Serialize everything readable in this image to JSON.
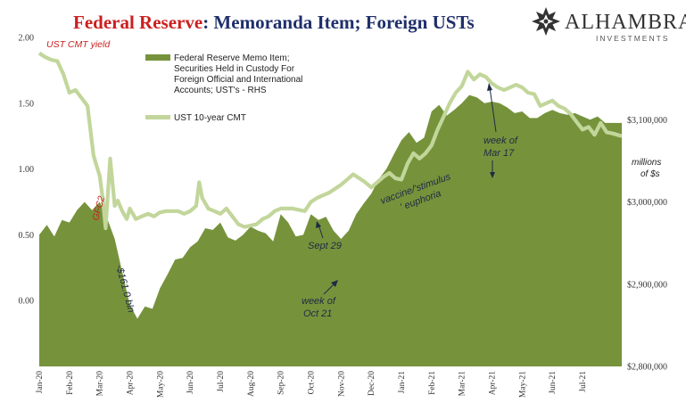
{
  "title_part1": "Federal Reserve",
  "title_part2": ": Memoranda Item; Foreign USTs",
  "logo": {
    "name": "ALHAMBRA",
    "sub": "INVESTMENTS"
  },
  "colors": {
    "title_red": "#cc1f1f",
    "title_blue": "#1f2f6b",
    "area": "#76933c",
    "line": "#c2d69b",
    "anno": "#1f2a44"
  },
  "chart_data": {
    "type": "area",
    "left_axis_label": "UST CMT yield",
    "right_axis_label": "millions of $s",
    "left_ylim": [
      -0.5,
      2.0
    ],
    "left_ticks": [
      "2.00",
      "1.50",
      "1.00",
      "0.50",
      "0.00"
    ],
    "right_ylim": [
      2800000,
      3200000
    ],
    "right_ticks": [
      "$3,100,000",
      "$3,000,000",
      "$2,900,000",
      "$2,800,000"
    ],
    "x_ticks": [
      "Jan-20",
      "Feb-20",
      "Mar-20",
      "Apr-20",
      "May-20",
      "Jun-20",
      "Jul-20",
      "Aug-20",
      "Sep-20",
      "Oct-20",
      "Nov-20",
      "Dec-20",
      "Jan-21",
      "Feb-21",
      "Mar-21",
      "Apr-21",
      "May-21",
      "Jun-21",
      "Jul-21"
    ],
    "x_range": [
      0,
      19.3
    ],
    "grid": false,
    "legend_position": "top-left",
    "series": [
      {
        "name": "Federal Reserve Memo Item; Securities Held in Custody For Foreign Official and International Accounts; UST's - RHS",
        "axis": "right",
        "kind": "area",
        "x": [
          0,
          0.25,
          0.5,
          0.75,
          1.0,
          1.25,
          1.5,
          1.75,
          2.0,
          2.25,
          2.5,
          2.75,
          3.0,
          3.25,
          3.5,
          3.75,
          4.0,
          4.25,
          4.5,
          4.75,
          5.0,
          5.25,
          5.5,
          5.75,
          6.0,
          6.25,
          6.5,
          6.75,
          7.0,
          7.25,
          7.5,
          7.75,
          8.0,
          8.25,
          8.5,
          8.75,
          9.0,
          9.25,
          9.5,
          9.75,
          10.0,
          10.25,
          10.5,
          10.75,
          11.0,
          11.25,
          11.5,
          11.75,
          12.0,
          12.25,
          12.5,
          12.75,
          13.0,
          13.25,
          13.5,
          13.75,
          14.0,
          14.25,
          14.5,
          14.75,
          15.0,
          15.25,
          15.5,
          15.75,
          16.0,
          16.25,
          16.5,
          16.75,
          17.0,
          17.25,
          17.5,
          17.75,
          18.0,
          18.25,
          18.5,
          18.75,
          19.0,
          19.3
        ],
        "values": [
          2960000,
          2972000,
          2958000,
          2978000,
          2975000,
          2990000,
          3000000,
          2990000,
          3000000,
          2980000,
          2955000,
          2915000,
          2875000,
          2858000,
          2873000,
          2870000,
          2895000,
          2912000,
          2930000,
          2932000,
          2945000,
          2952000,
          2968000,
          2966000,
          2975000,
          2957000,
          2953000,
          2960000,
          2970000,
          2965000,
          2962000,
          2952000,
          2985000,
          2975000,
          2958000,
          2960000,
          2985000,
          2978000,
          2982000,
          2965000,
          2955000,
          2965000,
          2985000,
          2998000,
          3010000,
          3028000,
          3040000,
          3058000,
          3075000,
          3085000,
          3072000,
          3078000,
          3110000,
          3118000,
          3105000,
          3112000,
          3120000,
          3130000,
          3127000,
          3120000,
          3122000,
          3120000,
          3115000,
          3108000,
          3110000,
          3102000,
          3102000,
          3108000,
          3112000,
          3108000,
          3106000,
          3108000,
          3104000,
          3100000,
          3104000,
          3096000,
          3096000,
          3096000
        ]
      },
      {
        "name": "UST 10-year CMT",
        "axis": "left",
        "kind": "line",
        "x": [
          0,
          0.2,
          0.4,
          0.6,
          0.8,
          1.0,
          1.2,
          1.4,
          1.6,
          1.8,
          2.0,
          2.1,
          2.2,
          2.35,
          2.5,
          2.6,
          2.75,
          2.9,
          3.0,
          3.2,
          3.4,
          3.6,
          3.8,
          4.0,
          4.2,
          4.4,
          4.6,
          4.8,
          5.0,
          5.2,
          5.3,
          5.4,
          5.6,
          5.8,
          6.0,
          6.2,
          6.4,
          6.6,
          6.8,
          7.0,
          7.2,
          7.4,
          7.6,
          7.8,
          8.0,
          8.2,
          8.4,
          8.6,
          8.8,
          9.0,
          9.2,
          9.4,
          9.6,
          9.8,
          10.0,
          10.2,
          10.4,
          10.6,
          10.8,
          11.0,
          11.2,
          11.4,
          11.6,
          11.8,
          12.0,
          12.2,
          12.4,
          12.6,
          12.8,
          13.0,
          13.2,
          13.4,
          13.6,
          13.8,
          14.0,
          14.2,
          14.4,
          14.6,
          14.8,
          15.0,
          15.2,
          15.4,
          15.6,
          15.8,
          16.0,
          16.2,
          16.4,
          16.6,
          16.8,
          17.0,
          17.2,
          17.4,
          17.6,
          17.8,
          18.0,
          18.2,
          18.4,
          18.6,
          18.8,
          19.0,
          19.3
        ],
        "values": [
          1.88,
          1.85,
          1.83,
          1.82,
          1.72,
          1.58,
          1.6,
          1.54,
          1.48,
          1.1,
          0.95,
          0.78,
          0.55,
          1.08,
          0.72,
          0.76,
          0.68,
          0.62,
          0.7,
          0.62,
          0.64,
          0.66,
          0.64,
          0.67,
          0.68,
          0.68,
          0.68,
          0.66,
          0.68,
          0.72,
          0.9,
          0.78,
          0.7,
          0.68,
          0.66,
          0.7,
          0.64,
          0.58,
          0.56,
          0.57,
          0.58,
          0.62,
          0.64,
          0.68,
          0.7,
          0.7,
          0.7,
          0.69,
          0.68,
          0.75,
          0.78,
          0.8,
          0.82,
          0.85,
          0.88,
          0.92,
          0.96,
          0.93,
          0.9,
          0.86,
          0.9,
          0.94,
          0.97,
          0.93,
          0.92,
          1.04,
          1.12,
          1.08,
          1.12,
          1.18,
          1.3,
          1.4,
          1.5,
          1.58,
          1.63,
          1.74,
          1.68,
          1.72,
          1.7,
          1.65,
          1.62,
          1.6,
          1.62,
          1.64,
          1.62,
          1.58,
          1.57,
          1.48,
          1.5,
          1.52,
          1.48,
          1.46,
          1.42,
          1.36,
          1.3,
          1.32,
          1.26,
          1.35,
          1.28,
          1.27,
          1.25
        ]
      }
    ],
    "annotations": [
      {
        "text": "GFC2",
        "color": "red"
      },
      {
        "text": "-$161.0 bln"
      },
      {
        "text": "Sept 29"
      },
      {
        "text": "week of"
      },
      {
        "text": "Oct 21"
      },
      {
        "text": "vaccine/'stimulus"
      },
      {
        "text": "' euphoria"
      },
      {
        "text": "Mar 17"
      }
    ]
  }
}
